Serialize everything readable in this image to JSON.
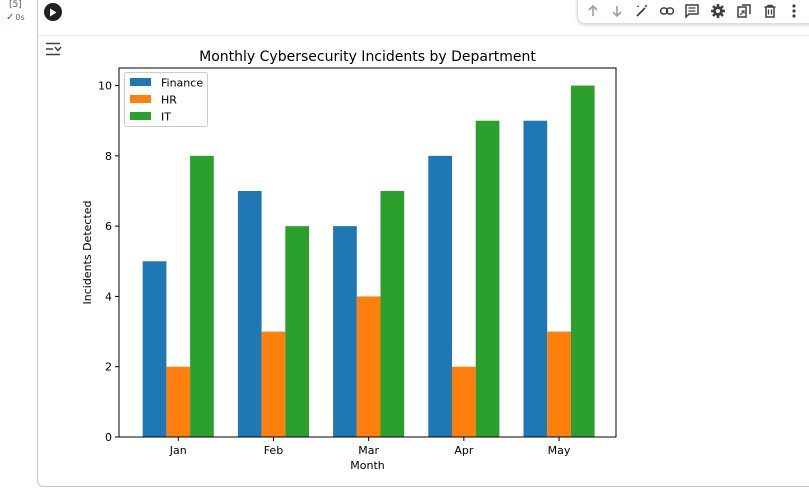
{
  "cell": {
    "execution_count": "[5]",
    "status_time": "0s",
    "status_icon": "check-icon"
  },
  "toolbar": {
    "buttons": [
      {
        "name": "move-up-icon"
      },
      {
        "name": "move-down-icon"
      },
      {
        "name": "magic-wand-icon"
      },
      {
        "name": "link-icon"
      },
      {
        "name": "comment-icon"
      },
      {
        "name": "gear-icon"
      },
      {
        "name": "mirror-cell-icon"
      },
      {
        "name": "trash-icon"
      },
      {
        "name": "more-vert-icon"
      }
    ]
  },
  "chart_data": {
    "type": "bar",
    "title": "Monthly Cybersecurity Incidents by Department",
    "xlabel": "Month",
    "ylabel": "Incidents Detected",
    "categories": [
      "Jan",
      "Feb",
      "Mar",
      "Apr",
      "May"
    ],
    "series": [
      {
        "name": "Finance",
        "values": [
          5,
          7,
          6,
          8,
          9
        ],
        "color": "#1f77b4"
      },
      {
        "name": "HR",
        "values": [
          2,
          3,
          4,
          2,
          3
        ],
        "color": "#ff7f0e"
      },
      {
        "name": "IT",
        "values": [
          8,
          6,
          7,
          9,
          10
        ],
        "color": "#2ca02c"
      }
    ],
    "ylim": [
      0,
      10.5
    ],
    "yticks": [
      0,
      2,
      4,
      6,
      8,
      10
    ],
    "grid": false,
    "legend": "top-left"
  }
}
